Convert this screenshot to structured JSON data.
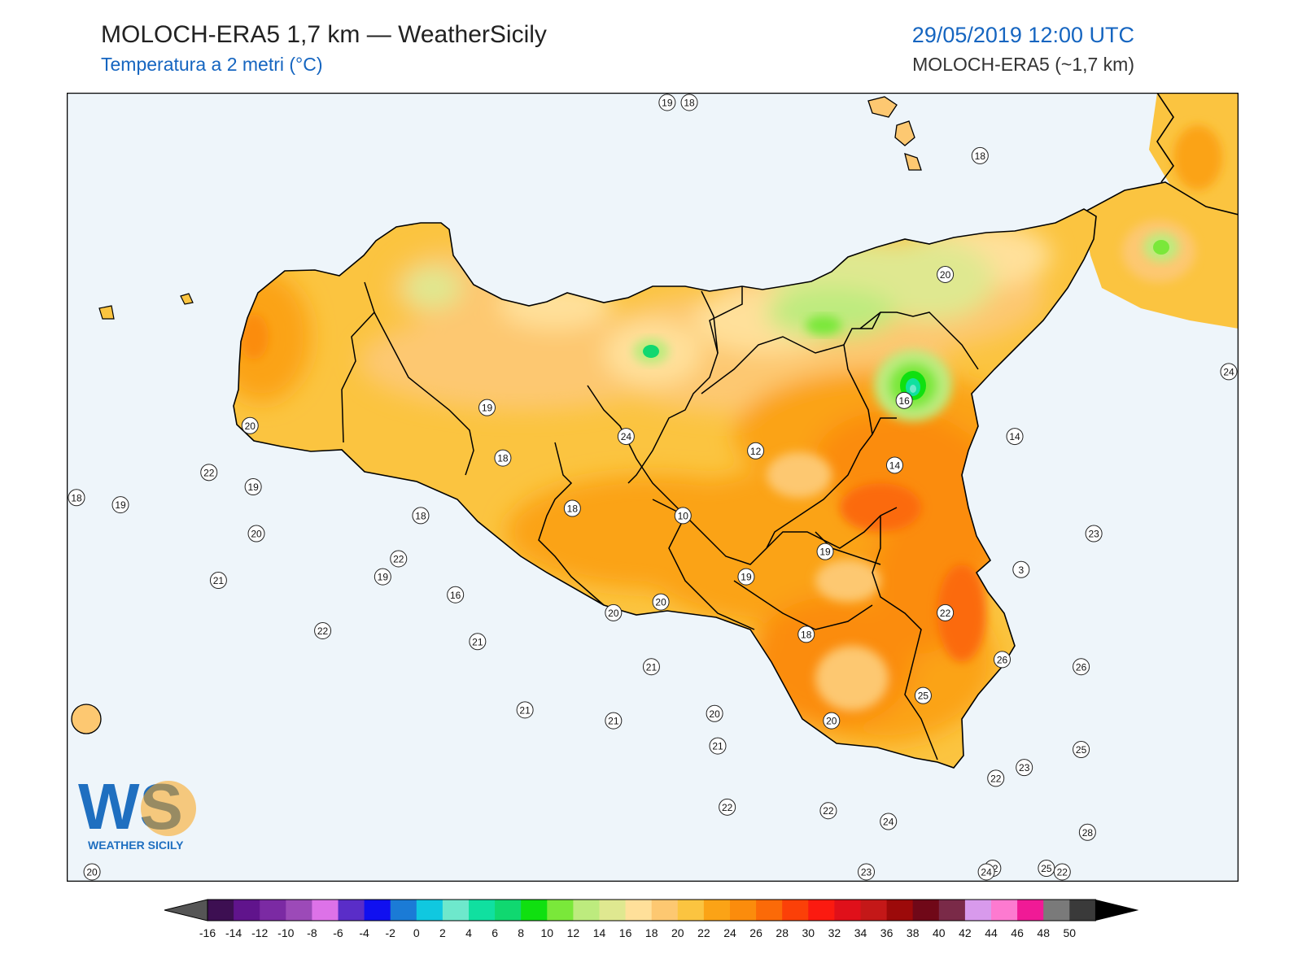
{
  "header": {
    "title": "MOLOCH-ERA5 1,7 km — WeatherSicily",
    "subtitle": "Temperatura a 2 metri (°C)",
    "datetime": "29/05/2019 12:00 UTC",
    "model": "MOLOCH-ERA5 (~1,7 km)"
  },
  "logo": {
    "letters": "WS",
    "text": "WEATHER SICILY"
  },
  "colors": {
    "sea": "#eef5fa",
    "border": "#000000"
  },
  "labels": [
    {
      "v": "19",
      "lon": 13.87,
      "lat": 39.06
    },
    {
      "v": "18",
      "lon": 13.94,
      "lat": 39.08
    },
    {
      "v": "18",
      "lon": 14.86,
      "lat": 38.9
    },
    {
      "v": "20",
      "lon": 14.75,
      "lat": 38.57
    },
    {
      "v": "24",
      "lon": 15.68,
      "lat": 38.3
    },
    {
      "v": "16",
      "lon": 14.62,
      "lat": 38.22
    },
    {
      "v": "14",
      "lon": 14.97,
      "lat": 38.12
    },
    {
      "v": "14",
      "lon": 14.59,
      "lat": 38.04
    },
    {
      "v": "18",
      "lon": 13.35,
      "lat": 38.06
    },
    {
      "v": "12",
      "lon": 14.15,
      "lat": 38.08
    },
    {
      "v": "3",
      "lon": 14.99,
      "lat": 37.75
    },
    {
      "v": "23",
      "lon": 15.22,
      "lat": 37.85
    },
    {
      "v": "20",
      "lon": 12.55,
      "lat": 38.15
    },
    {
      "v": "19",
      "lon": 13.3,
      "lat": 38.2
    },
    {
      "v": "24",
      "lon": 13.74,
      "lat": 38.12
    },
    {
      "v": "22",
      "lon": 12.42,
      "lat": 38.02
    },
    {
      "v": "19",
      "lon": 12.56,
      "lat": 37.98
    },
    {
      "v": "18",
      "lon": 11.95,
      "lat": 37.95
    },
    {
      "v": "19",
      "lon": 12.14,
      "lat": 37.93
    },
    {
      "v": "20",
      "lon": 12.57,
      "lat": 37.85
    },
    {
      "v": "18",
      "lon": 13.09,
      "lat": 37.9
    },
    {
      "v": "18",
      "lon": 13.57,
      "lat": 37.92
    },
    {
      "v": "10",
      "lon": 13.92,
      "lat": 37.9
    },
    {
      "v": "19",
      "lon": 14.12,
      "lat": 37.73
    },
    {
      "v": "19",
      "lon": 14.37,
      "lat": 37.8
    },
    {
      "v": "22",
      "lon": 13.02,
      "lat": 37.78
    },
    {
      "v": "19",
      "lon": 12.97,
      "lat": 37.73
    },
    {
      "v": "21",
      "lon": 12.45,
      "lat": 37.72
    },
    {
      "v": "22",
      "lon": 12.78,
      "lat": 37.58
    },
    {
      "v": "16",
      "lon": 13.2,
      "lat": 37.68
    },
    {
      "v": "20",
      "lon": 13.7,
      "lat": 37.63
    },
    {
      "v": "20",
      "lon": 13.85,
      "lat": 37.66
    },
    {
      "v": "18",
      "lon": 14.31,
      "lat": 37.57
    },
    {
      "v": "22",
      "lon": 14.75,
      "lat": 37.63
    },
    {
      "v": "26",
      "lon": 14.93,
      "lat": 37.5
    },
    {
      "v": "26",
      "lon": 15.18,
      "lat": 37.48
    },
    {
      "v": "21",
      "lon": 13.27,
      "lat": 37.55
    },
    {
      "v": "21",
      "lon": 13.82,
      "lat": 37.48
    },
    {
      "v": "21",
      "lon": 13.42,
      "lat": 37.36
    },
    {
      "v": "20",
      "lon": 14.02,
      "lat": 37.35
    },
    {
      "v": "25",
      "lon": 14.68,
      "lat": 37.4
    },
    {
      "v": "20",
      "lon": 14.39,
      "lat": 37.33
    },
    {
      "v": "21",
      "lon": 13.7,
      "lat": 37.33
    },
    {
      "v": "21",
      "lon": 14.03,
      "lat": 37.26
    },
    {
      "v": "25",
      "lon": 15.18,
      "lat": 37.25
    },
    {
      "v": "23",
      "lon": 15.0,
      "lat": 37.2
    },
    {
      "v": "22",
      "lon": 14.91,
      "lat": 37.17
    },
    {
      "v": "22",
      "lon": 14.06,
      "lat": 37.09
    },
    {
      "v": "22",
      "lon": 14.38,
      "lat": 37.08
    },
    {
      "v": "24",
      "lon": 14.57,
      "lat": 37.05
    },
    {
      "v": "28",
      "lon": 15.2,
      "lat": 37.02
    },
    {
      "v": "25",
      "lon": 15.07,
      "lat": 36.92
    },
    {
      "v": "22",
      "lon": 14.9,
      "lat": 36.92
    },
    {
      "v": "23",
      "lon": 14.5,
      "lat": 36.85
    },
    {
      "v": "24",
      "lon": 14.88,
      "lat": 36.73
    },
    {
      "v": "22",
      "lon": 15.12,
      "lat": 36.67
    },
    {
      "v": "20",
      "lon": 12.05,
      "lat": 36.82
    }
  ],
  "colorbar": {
    "ticks": [
      "-16",
      "-14",
      "-12",
      "-10",
      "-8",
      "-6",
      "-4",
      "-2",
      "0",
      "2",
      "4",
      "6",
      "8",
      "10",
      "12",
      "14",
      "16",
      "18",
      "20",
      "22",
      "24",
      "26",
      "28",
      "30",
      "32",
      "34",
      "36",
      "38",
      "40",
      "42",
      "44",
      "46",
      "48",
      "50"
    ],
    "colors": [
      "#3d0f52",
      "#60148c",
      "#7b2aa3",
      "#9c4ab8",
      "#dd72e8",
      "#5a2dc8",
      "#1010f0",
      "#1b7bd6",
      "#10c8e0",
      "#6ee8cc",
      "#10e0a0",
      "#10d870",
      "#10e010",
      "#7ae83a",
      "#bdeb7e",
      "#dfe890",
      "#ffe09a",
      "#fdc871",
      "#fbc440",
      "#fba316",
      "#fb8c0c",
      "#fb6a08",
      "#fb4008",
      "#fb1a10",
      "#e0101a",
      "#c41818",
      "#9c0a0a",
      "#700818",
      "#7a2a48",
      "#d89aec",
      "#fd7ad0",
      "#f01a96",
      "#7a7a7a",
      "#3a3a3a"
    ]
  }
}
